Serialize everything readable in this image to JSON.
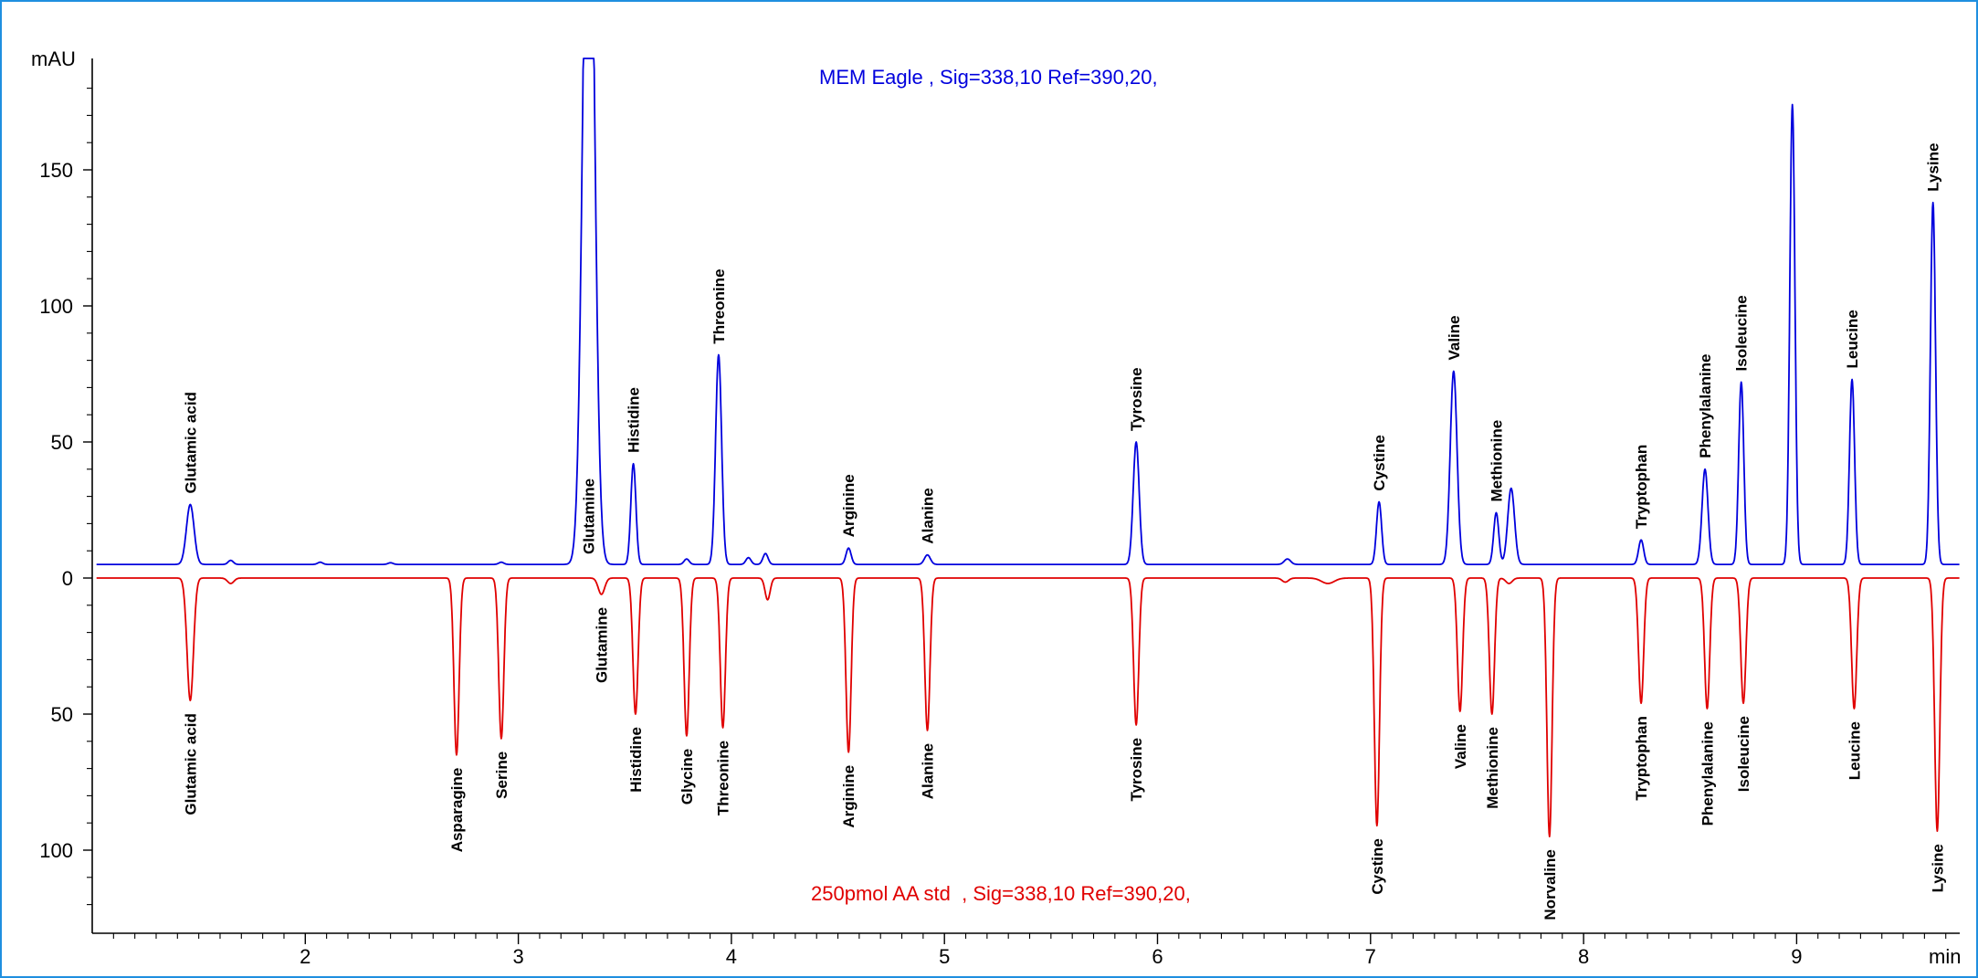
{
  "chart_data": {
    "type": "line",
    "x_unit": "min",
    "y_unit": "mAU",
    "xlim": [
      1.0,
      9.85
    ],
    "ylim": [
      -128,
      192
    ],
    "y_axis_labels": [
      {
        "value": 150,
        "label": "150"
      },
      {
        "value": 100,
        "label": "100"
      },
      {
        "value": 50,
        "label": "50"
      },
      {
        "value": 0,
        "label": "0"
      },
      {
        "value": -50,
        "label": "50"
      },
      {
        "value": -100,
        "label": "100"
      }
    ],
    "x_ticks": [
      "2",
      "3",
      "4",
      "5",
      "6",
      "7",
      "8",
      "9"
    ],
    "grid": false,
    "series": [
      {
        "name": "MEM Eagle , Sig=338,10 Ref=390,20,",
        "color": "#0000dd",
        "baseline": 5,
        "direction": 1,
        "peaks": [
          {
            "x": 1.46,
            "h": 22,
            "w": 0.018,
            "label": "Glutamic acid"
          },
          {
            "x": 1.65,
            "h": 1.5,
            "w": 0.012
          },
          {
            "x": 2.07,
            "h": 0.8,
            "w": 0.012
          },
          {
            "x": 2.4,
            "h": 0.6,
            "w": 0.012
          },
          {
            "x": 2.92,
            "h": 0.8,
            "w": 0.012
          },
          {
            "x": 3.33,
            "h": 300,
            "w": 0.026,
            "label": "Glutamine"
          },
          {
            "x": 3.54,
            "h": 37,
            "w": 0.012,
            "label": "Histidine"
          },
          {
            "x": 3.79,
            "h": 2,
            "w": 0.012
          },
          {
            "x": 3.94,
            "h": 77,
            "w": 0.014,
            "label": "Threonine"
          },
          {
            "x": 4.08,
            "h": 2.5,
            "w": 0.012
          },
          {
            "x": 4.16,
            "h": 4,
            "w": 0.012
          },
          {
            "x": 4.55,
            "h": 6,
            "w": 0.012,
            "label": "Arginine"
          },
          {
            "x": 4.92,
            "h": 3.5,
            "w": 0.014,
            "label": "Alanine"
          },
          {
            "x": 5.9,
            "h": 45,
            "w": 0.014,
            "label": "Tyrosine"
          },
          {
            "x": 6.61,
            "h": 2,
            "w": 0.015
          },
          {
            "x": 7.04,
            "h": 23,
            "w": 0.012,
            "label": "Cystine"
          },
          {
            "x": 7.39,
            "h": 71,
            "w": 0.016,
            "label": "Valine"
          },
          {
            "x": 7.59,
            "h": 19,
            "w": 0.012,
            "label": "Methionine"
          },
          {
            "x": 7.66,
            "h": 28,
            "w": 0.016
          },
          {
            "x": 8.27,
            "h": 9,
            "w": 0.012,
            "label": "Tryptophan"
          },
          {
            "x": 8.57,
            "h": 35,
            "w": 0.014,
            "label": "Phenylalanine"
          },
          {
            "x": 8.74,
            "h": 67,
            "w": 0.012,
            "label": "Isoleucine"
          },
          {
            "x": 8.98,
            "h": 169,
            "w": 0.012
          },
          {
            "x": 9.26,
            "h": 68,
            "w": 0.012,
            "label": "Leucine"
          },
          {
            "x": 9.64,
            "h": 133,
            "w": 0.012,
            "label": "Lysine"
          }
        ]
      },
      {
        "name": "250pmol AA std  , Sig=338,10 Ref=390,20,",
        "color": "#e00000",
        "baseline": 0,
        "direction": -1,
        "peaks": [
          {
            "x": 1.46,
            "h": 45,
            "w": 0.015,
            "label": "Glutamic acid"
          },
          {
            "x": 1.65,
            "h": 2,
            "w": 0.015
          },
          {
            "x": 2.71,
            "h": 65,
            "w": 0.012,
            "label": "Asparagine"
          },
          {
            "x": 2.92,
            "h": 59,
            "w": 0.012,
            "label": "Serine"
          },
          {
            "x": 3.39,
            "h": 6,
            "w": 0.015,
            "label": "Glutamine"
          },
          {
            "x": 3.55,
            "h": 50,
            "w": 0.012,
            "label": "Histidine"
          },
          {
            "x": 3.79,
            "h": 58,
            "w": 0.012,
            "label": "Glycine"
          },
          {
            "x": 3.96,
            "h": 55,
            "w": 0.012,
            "label": "Threonine"
          },
          {
            "x": 4.17,
            "h": 8,
            "w": 0.012
          },
          {
            "x": 4.55,
            "h": 64,
            "w": 0.012,
            "label": "Arginine"
          },
          {
            "x": 4.92,
            "h": 56,
            "w": 0.012,
            "label": "Alanine"
          },
          {
            "x": 5.9,
            "h": 54,
            "w": 0.012,
            "label": "Tyrosine"
          },
          {
            "x": 6.6,
            "h": 1.5,
            "w": 0.015
          },
          {
            "x": 6.8,
            "h": 2,
            "w": 0.03
          },
          {
            "x": 7.03,
            "h": 91,
            "w": 0.012,
            "label": "Cystine"
          },
          {
            "x": 7.42,
            "h": 49,
            "w": 0.012,
            "label": "Valine"
          },
          {
            "x": 7.57,
            "h": 50,
            "w": 0.012,
            "label": "Methionine"
          },
          {
            "x": 7.65,
            "h": 2,
            "w": 0.015
          },
          {
            "x": 7.84,
            "h": 95,
            "w": 0.012,
            "label": "Norvaline"
          },
          {
            "x": 8.27,
            "h": 46,
            "w": 0.012,
            "label": "Tryptophan"
          },
          {
            "x": 8.58,
            "h": 48,
            "w": 0.012,
            "label": "Phenylalanine"
          },
          {
            "x": 8.75,
            "h": 46,
            "w": 0.012,
            "label": "Isoleucine"
          },
          {
            "x": 9.27,
            "h": 48,
            "w": 0.012,
            "label": "Leucine"
          },
          {
            "x": 9.66,
            "h": 93,
            "w": 0.012,
            "label": "Lysine"
          }
        ]
      }
    ]
  }
}
